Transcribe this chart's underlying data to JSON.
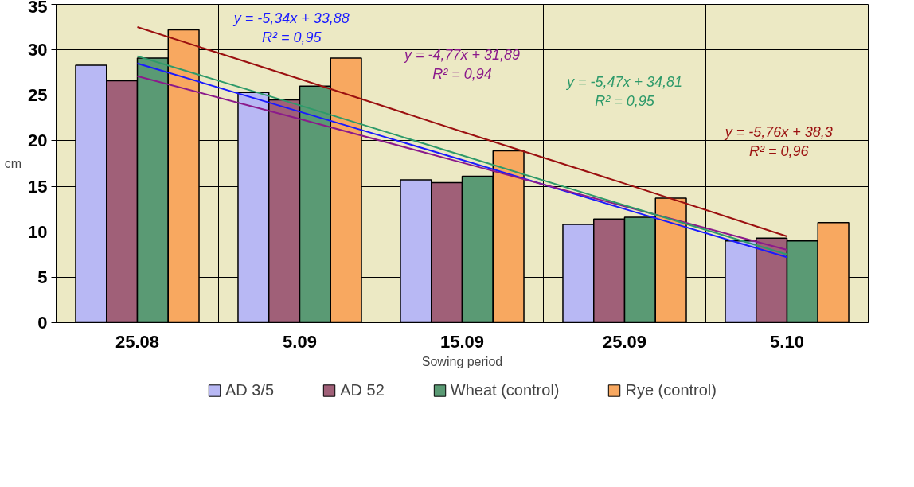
{
  "chart_data": {
    "type": "bar",
    "xlabel": "Sowing period",
    "ylabel": "cm",
    "categories": [
      "25.08",
      "5.09",
      "15.09",
      "25.09",
      "5.10"
    ],
    "series": [
      {
        "name": "AD 3/5",
        "color": "#b8b8f4",
        "values": [
          28.3,
          25.3,
          15.7,
          10.8,
          9.0
        ]
      },
      {
        "name": "AD 52",
        "color": "#a06078",
        "values": [
          26.6,
          24.5,
          15.4,
          11.4,
          9.3
        ]
      },
      {
        "name": "Wheat (control)",
        "color": "#5a9a74",
        "values": [
          29.1,
          26.0,
          16.1,
          11.6,
          9.0
        ]
      },
      {
        "name": "Rye (control)",
        "color": "#f8a860",
        "values": [
          32.2,
          29.1,
          18.9,
          13.7,
          11.0
        ]
      },
      {
        "type": "line",
        "color": "#1a1aff",
        "values": [
          28.5,
          23.2,
          17.9,
          12.5,
          7.2
        ]
      },
      {
        "type": "line",
        "color": "#8b1a8b",
        "values": [
          27.1,
          22.4,
          17.6,
          12.8,
          8.0
        ]
      },
      {
        "type": "line",
        "color": "#2e9a6a",
        "values": [
          29.3,
          23.9,
          18.4,
          12.9,
          7.5
        ]
      },
      {
        "type": "line",
        "color": "#9b1010",
        "values": [
          32.5,
          26.8,
          21.0,
          15.3,
          9.5
        ]
      }
    ],
    "annotations": [
      "y = -5,34x + 33,88\nR² = 0,95",
      "y = -4,77x + 31,89\nR² = 0,94",
      "y = -5,47x + 34,81\nR² = 0,95",
      "y = -5,76x + 38,3\nR² = 0,96"
    ],
    "ylim": [
      0,
      35
    ],
    "yticks": [
      0,
      5,
      10,
      15,
      20,
      25,
      30,
      35
    ],
    "grid": true,
    "legend": "bottom"
  }
}
